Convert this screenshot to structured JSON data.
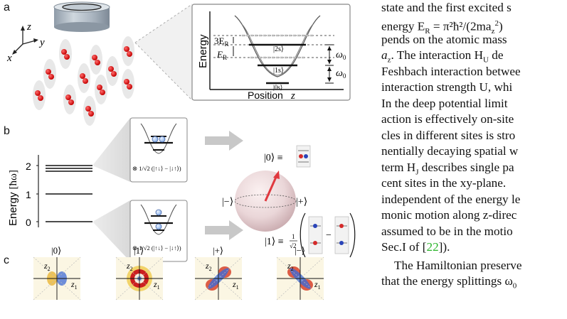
{
  "figure": {
    "panel_a": {
      "label": "a",
      "axes": {
        "z": "z",
        "y": "y",
        "x": "x"
      },
      "inset": {
        "y_axis_label": "Energy",
        "x_axis_label": "Position",
        "x_axis_var": "z",
        "level_labels": [
          "3E",
          "E"
        ],
        "level_label_sub": "R",
        "states": [
          "|2s⟩",
          "|1s⟩",
          "|0s⟩"
        ],
        "omega": [
          "ω",
          "ω"
        ],
        "omega_sub": "0"
      }
    },
    "panel_b": {
      "label": "b",
      "y_axis_label": "Energy",
      "y_axis_unit": "[ħω]",
      "ticks": [
        "2",
        "1",
        "0"
      ],
      "ket0": "|0⟩ ≡",
      "ket1": "|1⟩ ≡",
      "ket_minus": "|−⟩",
      "ket_plus": "|+⟩",
      "spin_top": "⊗ 1/√2 (|↑↓⟩ − |↓↑⟩)",
      "spin_bottom": "⊗ 1/√2 (|↑↓⟩ − |↓↑⟩)",
      "fraction": "1",
      "sqrt2": "√2",
      "minus": "−"
    },
    "panel_c": {
      "label": "c",
      "maps": [
        {
          "title": "|0⟩",
          "type": "zero"
        },
        {
          "title": "|1⟩",
          "type": "one"
        },
        {
          "title": "|+⟩",
          "type": "plus"
        },
        {
          "title": "|−⟩",
          "type": "minus"
        }
      ],
      "z1": "z",
      "z2": "z",
      "sub1": "1",
      "sub2": "2"
    }
  },
  "text_lines": [
    "state and the first excited s",
    "energy E",
    "pends on the atomic mass",
    "a",
    "Feshbach interaction betwee",
    "interaction strength U, whi",
    "In the deep potential limit",
    "action is effectively on-site",
    "cles in different sites is stro",
    "nentially decaying spatial w",
    "term H",
    "cent sites in the xy-plane.",
    "independent of the energy le",
    "monic motion along z-direc",
    "assumed to be in the motio",
    "Sec.I of [",
    "The Hamiltonian preserve",
    "that the energy splittings ω"
  ],
  "text_fragments": {
    "energy_formula": " = π²ħ²/(2ma",
    "energy_tail": ")",
    "interaction_line": ". The interaction H",
    "interaction_tail": " de",
    "hj_tail": " describes single pa",
    "ref_number": "22",
    "ref_close": "]).",
    "sub_R": "R",
    "sub_z": "z",
    "sub_U": "U",
    "sub_J": "J",
    "sub_0": "0",
    "sup_2": "2"
  }
}
